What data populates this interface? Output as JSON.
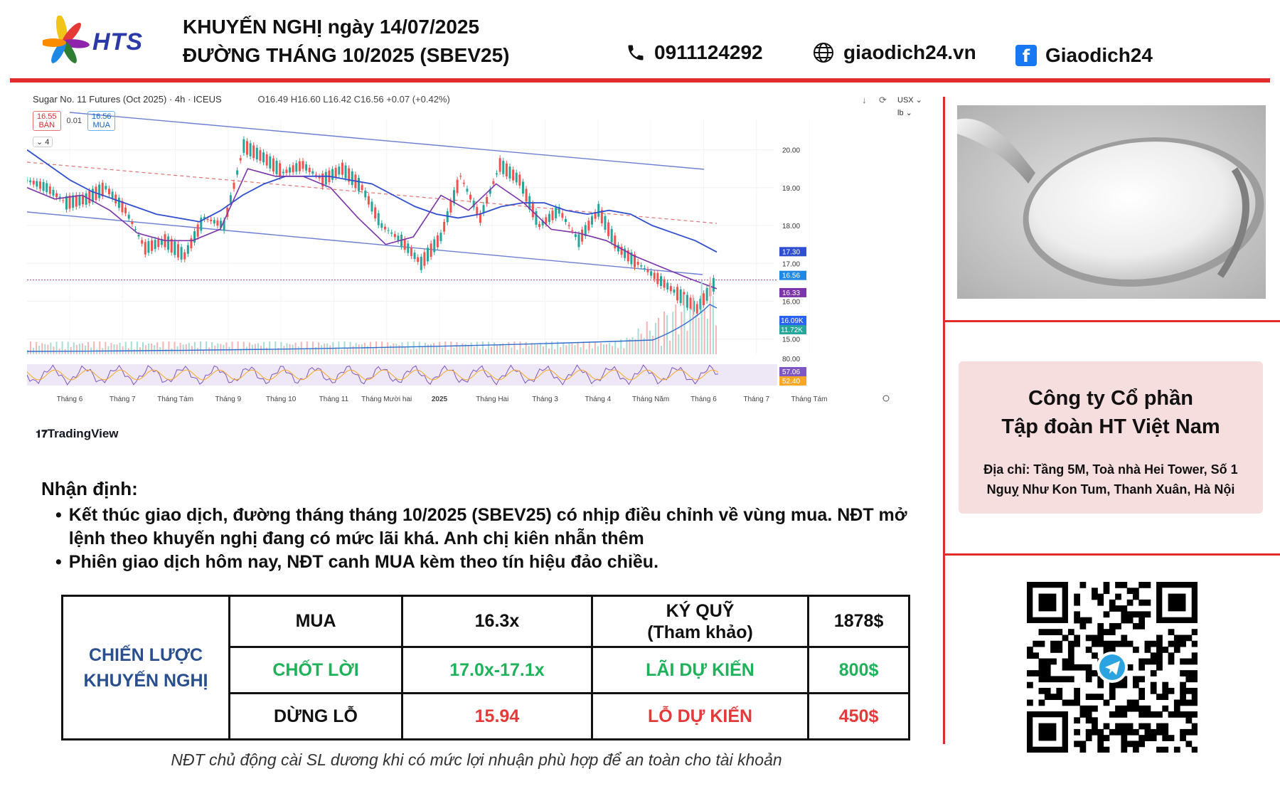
{
  "header": {
    "brand": "HTS",
    "title_line1": "KHUYẾN NGHỊ ngày 14/07/2025",
    "title_line2": "ĐƯỜNG THÁNG 10/2025 (SBEV25)",
    "phone": "0911124292",
    "website": "giaodich24.vn",
    "facebook": "Giaodich24",
    "icons": [
      "phone-icon",
      "globe-icon",
      "facebook-icon"
    ]
  },
  "chart_header": {
    "symbol": "Sugar No. 11 Futures (Oct 2025) · 4h · ICEUS",
    "ohlc": "O16.49 H16.60 L16.42 C16.56 +0.07 (+0.42%)",
    "sell_price": "16.55",
    "sell_label": "BÁN",
    "spread": "0.01",
    "buy_price": "16.56",
    "buy_label": "MUA",
    "indicator_count": "4",
    "currency": "USX",
    "unit": "lb"
  },
  "chart_data": {
    "type": "line",
    "title": "Sugar No. 11 Futures (Oct 2025) · 4h · ICEUS",
    "x_ticks": [
      "Tháng 6",
      "Tháng 7",
      "Tháng Tám",
      "Tháng 9",
      "Tháng 10",
      "Tháng 11",
      "Tháng Mười hai",
      "2025",
      "Tháng Hai",
      "Tháng 3",
      "Tháng 4",
      "Tháng Năm",
      "Tháng 6",
      "Tháng 7",
      "Tháng Tám"
    ],
    "y_ticks": [
      20.0,
      19.0,
      18.0,
      17.0,
      16.0,
      15.0
    ],
    "ylim": [
      14.6,
      20.8
    ],
    "series": [
      {
        "values": [
          19.2,
          19.0,
          18.6,
          18.7,
          19.0,
          18.4,
          17.4,
          17.6,
          17.2,
          18.2,
          18.0,
          20.1,
          19.8,
          19.4,
          19.6,
          19.2,
          19.5,
          19.0,
          18.0,
          17.6,
          17.0,
          17.7,
          19.3,
          18.2,
          19.6,
          19.2,
          18.0,
          18.4,
          17.6,
          18.4,
          17.4,
          17.0,
          16.6,
          16.2,
          15.8,
          16.56
        ]
      },
      {
        "values": [
          20.0,
          19.6,
          19.2,
          18.9,
          18.7,
          18.5,
          18.3,
          18.2,
          18.1,
          18.4,
          18.8,
          19.1,
          19.3,
          19.3,
          19.3,
          19.2,
          19.1,
          18.8,
          18.5,
          18.3,
          18.2,
          18.3,
          18.5,
          18.6,
          18.6,
          18.4,
          18.3,
          18.4,
          18.3,
          18.0,
          17.8,
          17.6,
          17.3
        ]
      },
      {
        "values": [
          19.0,
          18.7,
          18.8,
          18.4,
          17.8,
          17.6,
          17.6,
          17.9,
          19.5,
          19.3,
          19.3,
          19.0,
          18.2,
          17.5,
          17.7,
          18.8,
          18.4,
          19.1,
          18.6,
          17.9,
          17.8,
          17.6,
          17.2,
          16.9,
          16.6,
          16.33
        ]
      }
    ],
    "price_labels": {
      "ma_long": "17.30",
      "last": "16.56",
      "ma_short": "16.33"
    },
    "volume_labels": {
      "volume": "16.09K",
      "volume_ma": "11.72K"
    },
    "rsi_labels": {
      "upper": "80.00",
      "rsi": "57.06",
      "rsi_ma": "52.40"
    },
    "grid": true
  },
  "tradingview": "TradingView",
  "analysis": {
    "heading": "Nhận định:",
    "bullets": [
      "Kết thúc giao dịch, đường tháng tháng 10/2025 (SBEV25) có nhịp điều chỉnh về vùng mua. NĐT mở lệnh theo khuyến nghị đang có mức lãi khá. Anh chị kiên nhẫn thêm",
      "Phiên giao dịch hôm nay, NĐT canh MUA kèm theo tín hiệu đảo chiều."
    ]
  },
  "strategy": {
    "label_line1": "CHIẾN LƯỢC",
    "label_line2": "KHUYẾN NGHỊ",
    "action": "MUA",
    "entry": "16.3x",
    "margin_label_1": "KÝ QUỸ",
    "margin_label_2": "(Tham khảo)",
    "margin_value": "1878$",
    "tp_label": "CHỐT LỜI",
    "tp_value": "17.0x-17.1x",
    "profit_label": "LÃI DỰ KIẾN",
    "profit_value": "800$",
    "sl_label": "DỪNG LỖ",
    "sl_value": "15.94",
    "loss_label": "LỖ DỰ KIẾN",
    "loss_value": "450$"
  },
  "footnote": "NĐT chủ động cài SL dương khi có mức lợi nhuận phù hợp để an toàn cho tài khoản",
  "company": {
    "name_line1": "Công ty Cổ phần",
    "name_line2": "Tập đoàn HT Việt Nam",
    "address_line1": "Địa chỉ: Tầng 5M, Toà nhà Hei Tower, Số 1",
    "address_line2": "Nguỵ Như Kon Tum, Thanh Xuân, Hà Nội"
  },
  "colors": {
    "accent_red": "#e32b2b",
    "buy_green": "#1eb25a",
    "loss_red": "#e43a3a",
    "label_blue": "#2a4f8f",
    "ma_blue": "#2f4fd0",
    "ma_purple": "#7b35a8"
  }
}
